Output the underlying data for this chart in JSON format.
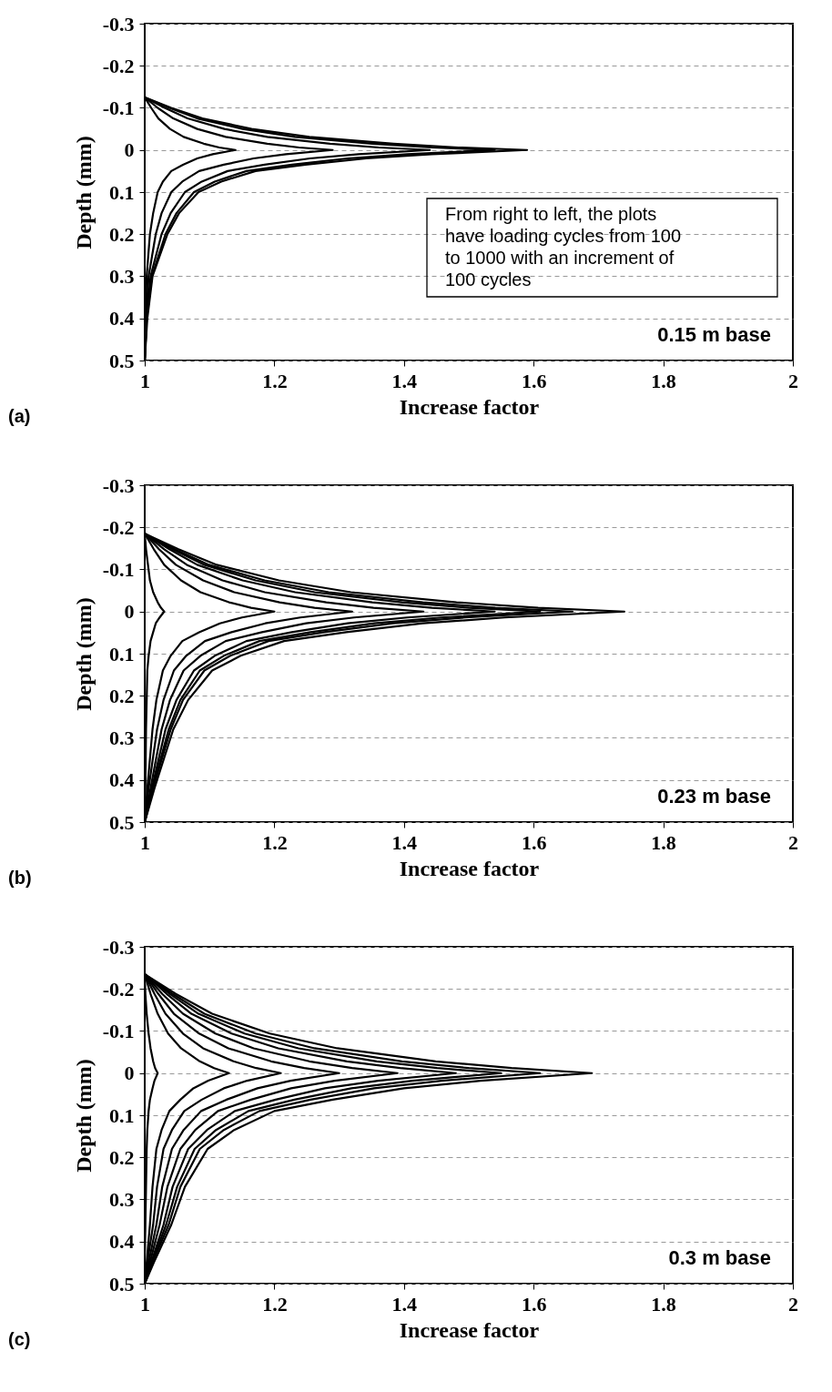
{
  "chart_data": [
    {
      "type": "line",
      "xlabel": "Increase factor",
      "ylabel": "Depth (mm)",
      "xlim": [
        1,
        2
      ],
      "ylim": [
        0.5,
        -0.3
      ],
      "xticks": [
        1,
        1.2,
        1.4,
        1.6,
        1.8,
        2
      ],
      "yticks": [
        -0.3,
        -0.2,
        -0.1,
        0,
        0.1,
        0.2,
        0.3,
        0.4,
        0.5
      ],
      "grid": "y",
      "line_style": "solid",
      "annotations": [
        "(a)",
        "0.15 m base",
        "From right to left, the plots have loading cycles from 100 to 1000 with an increment of 100 cycles"
      ],
      "series": [
        {
          "color": "#000000",
          "x": [
            1,
            1.041,
            1.089,
            1.165,
            1.254,
            1.384,
            1.484,
            1.59,
            1.443,
            1.342,
            1.248,
            1.171,
            1.118,
            1.083,
            1.053,
            1.035,
            1.012,
            1.004,
            1
          ],
          "values": [
            -0.125,
            -0.1,
            -0.075,
            -0.05,
            -0.031,
            -0.015,
            -0.006,
            0,
            0.01,
            0.02,
            0.035,
            0.05,
            0.075,
            0.1,
            0.15,
            0.2,
            0.3,
            0.4,
            0.5
          ]
        },
        {
          "color": "#000000",
          "x": [
            1,
            1.038,
            1.081,
            1.151,
            1.232,
            1.351,
            1.443,
            1.54,
            1.405,
            1.313,
            1.227,
            1.157,
            1.108,
            1.076,
            1.049,
            1.032,
            1.011,
            1.003,
            1
          ],
          "values": [
            -0.125,
            -0.1,
            -0.075,
            -0.05,
            -0.031,
            -0.015,
            -0.006,
            0,
            0.01,
            0.02,
            0.035,
            0.05,
            0.075,
            0.1,
            0.15,
            0.2,
            0.3,
            0.4,
            0.5
          ]
        },
        {
          "color": "#000000",
          "x": [
            1,
            1.031,
            1.066,
            1.123,
            1.189,
            1.286,
            1.361,
            1.44,
            1.33,
            1.255,
            1.185,
            1.128,
            1.088,
            1.062,
            1.04,
            1.026,
            1.009,
            1.003,
            1
          ],
          "values": [
            -0.125,
            -0.1,
            -0.075,
            -0.05,
            -0.031,
            -0.015,
            -0.006,
            0,
            0.01,
            0.02,
            0.035,
            0.05,
            0.075,
            0.1,
            0.15,
            0.2,
            0.3,
            0.4,
            0.5
          ]
        },
        {
          "color": "#000000",
          "x": [
            1,
            1.02,
            1.044,
            1.081,
            1.125,
            1.189,
            1.238,
            1.29,
            1.218,
            1.168,
            1.122,
            1.084,
            1.058,
            1.041,
            1.026,
            1.017,
            1.006,
            1.002,
            1
          ],
          "values": [
            -0.125,
            -0.1,
            -0.075,
            -0.05,
            -0.031,
            -0.015,
            -0.006,
            0,
            0.01,
            0.02,
            0.035,
            0.05,
            0.075,
            0.1,
            0.15,
            0.2,
            0.3,
            0.4,
            0.5
          ]
        },
        {
          "color": "#000000",
          "x": [
            1,
            1.01,
            1.021,
            1.039,
            1.06,
            1.091,
            1.115,
            1.14,
            1.105,
            1.081,
            1.059,
            1.041,
            1.028,
            1.02,
            1.013,
            1.008,
            1.003,
            1.001,
            1
          ],
          "values": [
            -0.125,
            -0.1,
            -0.075,
            -0.05,
            -0.031,
            -0.015,
            -0.006,
            0,
            0.01,
            0.02,
            0.035,
            0.05,
            0.075,
            0.1,
            0.15,
            0.2,
            0.3,
            0.4,
            0.5
          ]
        }
      ]
    },
    {
      "type": "line",
      "xlabel": "Increase factor",
      "ylabel": "Depth (mm)",
      "xlim": [
        1,
        2
      ],
      "ylim": [
        0.5,
        -0.3
      ],
      "xticks": [
        1,
        1.2,
        1.4,
        1.6,
        1.8,
        2
      ],
      "yticks": [
        -0.3,
        -0.2,
        -0.1,
        0,
        0.1,
        0.2,
        0.3,
        0.4,
        0.5
      ],
      "grid": "y",
      "line_style": "solid",
      "annotations": [
        "(b)",
        "0.23 m base"
      ],
      "series": [
        {
          "color": "#000000",
          "x": [
            1,
            1.052,
            1.111,
            1.207,
            1.318,
            1.481,
            1.607,
            1.74,
            1.555,
            1.429,
            1.311,
            1.215,
            1.148,
            1.104,
            1.067,
            1.044,
            1.015,
            1
          ],
          "values": [
            -0.185,
            -0.148,
            -0.111,
            -0.074,
            -0.046,
            -0.022,
            -0.009,
            0,
            0.014,
            0.028,
            0.049,
            0.07,
            0.105,
            0.14,
            0.21,
            0.28,
            0.42,
            0.5
          ]
        },
        {
          "color": "#000000",
          "x": [
            1,
            1.046,
            1.099,
            1.185,
            1.284,
            1.429,
            1.541,
            1.66,
            1.495,
            1.383,
            1.277,
            1.191,
            1.132,
            1.092,
            1.059,
            1.04,
            1.013,
            1
          ],
          "values": [
            -0.185,
            -0.148,
            -0.111,
            -0.074,
            -0.046,
            -0.022,
            -0.009,
            0,
            0.014,
            0.028,
            0.049,
            0.07,
            0.105,
            0.14,
            0.21,
            0.28,
            0.42,
            0.5
          ]
        },
        {
          "color": "#000000",
          "x": [
            1,
            1.043,
            1.092,
            1.171,
            1.262,
            1.397,
            1.5,
            1.61,
            1.458,
            1.354,
            1.256,
            1.177,
            1.122,
            1.085,
            1.055,
            1.037,
            1.012,
            1
          ],
          "values": [
            -0.185,
            -0.148,
            -0.111,
            -0.074,
            -0.046,
            -0.022,
            -0.009,
            0,
            0.014,
            0.028,
            0.049,
            0.07,
            0.105,
            0.14,
            0.21,
            0.28,
            0.42,
            0.5
          ]
        },
        {
          "color": "#000000",
          "x": [
            1,
            1.038,
            1.081,
            1.151,
            1.232,
            1.351,
            1.443,
            1.54,
            1.405,
            1.313,
            1.227,
            1.157,
            1.108,
            1.076,
            1.049,
            1.032,
            1.011,
            1
          ],
          "values": [
            -0.185,
            -0.148,
            -0.111,
            -0.074,
            -0.046,
            -0.022,
            -0.009,
            0,
            0.014,
            0.028,
            0.049,
            0.07,
            0.105,
            0.14,
            0.21,
            0.28,
            0.42,
            0.5
          ]
        },
        {
          "color": "#000000",
          "x": [
            1,
            1.03,
            1.065,
            1.12,
            1.185,
            1.28,
            1.353,
            1.43,
            1.323,
            1.249,
            1.181,
            1.125,
            1.086,
            1.06,
            1.039,
            1.026,
            1.009,
            1
          ],
          "values": [
            -0.185,
            -0.148,
            -0.111,
            -0.074,
            -0.046,
            -0.022,
            -0.009,
            0,
            0.014,
            0.028,
            0.049,
            0.07,
            0.105,
            0.14,
            0.21,
            0.28,
            0.42,
            0.5
          ]
        },
        {
          "color": "#000000",
          "x": [
            1,
            1.022,
            1.048,
            1.09,
            1.138,
            1.208,
            1.262,
            1.32,
            1.24,
            1.186,
            1.134,
            1.093,
            1.064,
            1.045,
            1.029,
            1.019,
            1.006,
            1
          ],
          "values": [
            -0.185,
            -0.148,
            -0.111,
            -0.074,
            -0.046,
            -0.022,
            -0.009,
            0,
            0.014,
            0.028,
            0.049,
            0.07,
            0.105,
            0.14,
            0.21,
            0.28,
            0.42,
            0.5
          ]
        },
        {
          "color": "#000000",
          "x": [
            1,
            1.014,
            1.03,
            1.056,
            1.086,
            1.13,
            1.164,
            1.2,
            1.15,
            1.116,
            1.084,
            1.058,
            1.04,
            1.028,
            1.018,
            1.012,
            1.004,
            1
          ],
          "values": [
            -0.185,
            -0.148,
            -0.111,
            -0.074,
            -0.046,
            -0.022,
            -0.009,
            0,
            0.014,
            0.028,
            0.049,
            0.07,
            0.105,
            0.14,
            0.21,
            0.28,
            0.42,
            0.5
          ]
        },
        {
          "color": "#000000",
          "x": [
            1,
            1.002,
            1.005,
            1.008,
            1.013,
            1.02,
            1.025,
            1.03,
            1.023,
            1.017,
            1.013,
            1.009,
            1.006,
            1.004,
            1.003,
            1.002,
            1.001,
            1
          ],
          "values": [
            -0.185,
            -0.148,
            -0.111,
            -0.074,
            -0.046,
            -0.022,
            -0.009,
            0,
            0.014,
            0.028,
            0.049,
            0.07,
            0.105,
            0.14,
            0.21,
            0.28,
            0.42,
            0.5
          ]
        }
      ]
    },
    {
      "type": "line",
      "xlabel": "Increase factor",
      "ylabel": "Depth (mm)",
      "xlim": [
        1,
        2
      ],
      "ylim": [
        0.5,
        -0.3
      ],
      "xticks": [
        1,
        1.2,
        1.4,
        1.6,
        1.8,
        2
      ],
      "yticks": [
        -0.3,
        -0.2,
        -0.1,
        0,
        0.1,
        0.2,
        0.3,
        0.4,
        0.5
      ],
      "grid": "y",
      "line_style": "solid",
      "annotations": [
        "(c)",
        "0.3 m base"
      ],
      "series": [
        {
          "color": "#000000",
          "x": [
            1,
            1.048,
            1.104,
            1.193,
            1.297,
            1.449,
            1.566,
            1.69,
            1.518,
            1.4,
            1.29,
            1.2,
            1.138,
            1.097,
            1.062,
            1.041,
            1.014,
            1
          ],
          "values": [
            -0.235,
            -0.188,
            -0.141,
            -0.094,
            -0.059,
            -0.028,
            -0.012,
            0,
            0.018,
            0.036,
            0.063,
            0.09,
            0.135,
            0.18,
            0.27,
            0.36,
            0.45,
            0.5
          ]
        },
        {
          "color": "#000000",
          "x": [
            1,
            1.043,
            1.092,
            1.171,
            1.262,
            1.397,
            1.5,
            1.61,
            1.458,
            1.354,
            1.256,
            1.177,
            1.122,
            1.085,
            1.055,
            1.037,
            1.012,
            1
          ],
          "values": [
            -0.235,
            -0.188,
            -0.141,
            -0.094,
            -0.059,
            -0.028,
            -0.012,
            0,
            0.018,
            0.036,
            0.063,
            0.09,
            0.135,
            0.18,
            0.27,
            0.36,
            0.45,
            0.5
          ]
        },
        {
          "color": "#000000",
          "x": [
            1,
            1.039,
            1.083,
            1.154,
            1.237,
            1.358,
            1.451,
            1.55,
            1.413,
            1.319,
            1.231,
            1.16,
            1.11,
            1.077,
            1.05,
            1.033,
            1.011,
            1
          ],
          "values": [
            -0.235,
            -0.188,
            -0.141,
            -0.094,
            -0.059,
            -0.028,
            -0.012,
            0,
            0.018,
            0.036,
            0.063,
            0.09,
            0.135,
            0.18,
            0.27,
            0.36,
            0.45,
            0.5
          ]
        },
        {
          "color": "#000000",
          "x": [
            1,
            1.034,
            1.072,
            1.134,
            1.206,
            1.312,
            1.394,
            1.48,
            1.36,
            1.278,
            1.202,
            1.139,
            1.096,
            1.067,
            1.043,
            1.029,
            1.01,
            1
          ],
          "values": [
            -0.235,
            -0.188,
            -0.141,
            -0.094,
            -0.059,
            -0.028,
            -0.012,
            0,
            0.018,
            0.036,
            0.063,
            0.09,
            0.135,
            0.18,
            0.27,
            0.36,
            0.45,
            0.5
          ]
        },
        {
          "color": "#000000",
          "x": [
            1,
            1.027,
            1.059,
            1.109,
            1.168,
            1.254,
            1.32,
            1.39,
            1.293,
            1.226,
            1.164,
            1.113,
            1.078,
            1.055,
            1.035,
            1.023,
            1.008,
            1
          ],
          "values": [
            -0.235,
            -0.188,
            -0.141,
            -0.094,
            -0.059,
            -0.028,
            -0.012,
            0,
            0.018,
            0.036,
            0.063,
            0.09,
            0.135,
            0.18,
            0.27,
            0.36,
            0.45,
            0.5
          ]
        },
        {
          "color": "#000000",
          "x": [
            1,
            1.021,
            1.045,
            1.084,
            1.129,
            1.195,
            1.246,
            1.3,
            1.225,
            1.174,
            1.126,
            1.087,
            1.06,
            1.042,
            1.027,
            1.018,
            1.006,
            1
          ],
          "values": [
            -0.235,
            -0.188,
            -0.141,
            -0.094,
            -0.059,
            -0.028,
            -0.012,
            0,
            0.018,
            0.036,
            0.063,
            0.09,
            0.135,
            0.18,
            0.27,
            0.36,
            0.45,
            0.5
          ]
        },
        {
          "color": "#000000",
          "x": [
            1,
            1.015,
            1.032,
            1.059,
            1.09,
            1.137,
            1.172,
            1.21,
            1.158,
            1.122,
            1.088,
            1.061,
            1.042,
            1.029,
            1.019,
            1.013,
            1.004,
            1
          ],
          "values": [
            -0.235,
            -0.188,
            -0.141,
            -0.094,
            -0.059,
            -0.028,
            -0.012,
            0,
            0.018,
            0.036,
            0.063,
            0.09,
            0.135,
            0.18,
            0.27,
            0.36,
            0.45,
            0.5
          ]
        },
        {
          "color": "#000000",
          "x": [
            1,
            1.009,
            1.02,
            1.036,
            1.056,
            1.085,
            1.107,
            1.13,
            1.098,
            1.075,
            1.055,
            1.038,
            1.026,
            1.018,
            1.012,
            1.008,
            1.003,
            1
          ],
          "values": [
            -0.235,
            -0.188,
            -0.141,
            -0.094,
            -0.059,
            -0.028,
            -0.012,
            0,
            0.018,
            0.036,
            0.063,
            0.09,
            0.135,
            0.18,
            0.27,
            0.36,
            0.45,
            0.5
          ]
        },
        {
          "color": "#000000",
          "x": [
            1,
            1.001,
            1.003,
            1.006,
            1.009,
            1.013,
            1.016,
            1.02,
            1.015,
            1.012,
            1.008,
            1.006,
            1.004,
            1.003,
            1.002,
            1.001,
            1,
            1
          ],
          "values": [
            -0.235,
            -0.188,
            -0.141,
            -0.094,
            -0.059,
            -0.028,
            -0.012,
            0,
            0.018,
            0.036,
            0.063,
            0.09,
            0.135,
            0.18,
            0.27,
            0.36,
            0.45,
            0.5
          ]
        }
      ]
    }
  ]
}
